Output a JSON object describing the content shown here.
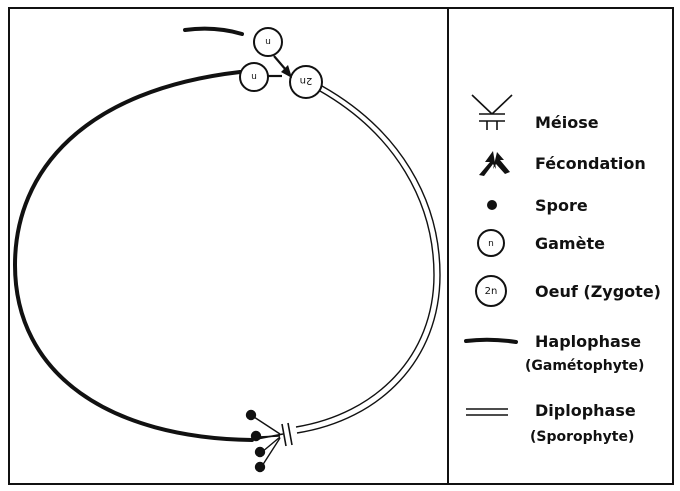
{
  "cell_labels": {
    "gamete": "n",
    "zygote": "2n"
  },
  "legend": {
    "meiose": "Méiose",
    "fecondation": "Fécondation",
    "spore": "Spore",
    "gamete": "Gamète",
    "oeuf": "Oeuf (Zygote)",
    "haplophase": "Haplophase",
    "haplophase_sub": "(Gamétophyte)",
    "diplophase": "Diplophase",
    "diplophase_sub": "(Sporophyte)"
  }
}
